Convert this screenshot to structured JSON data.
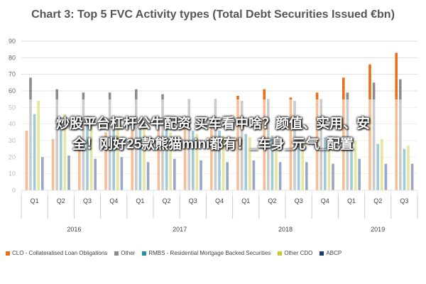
{
  "chart_data": {
    "type": "bar",
    "title": "Chart 3: Top 5 FVC Activity types (Total Debt Securities Issued €bn)",
    "ylim": [
      0,
      90
    ],
    "yticks": [
      0,
      10,
      20,
      30,
      40,
      50,
      60,
      70,
      80,
      90
    ],
    "grid": true,
    "legend_position": "bottom",
    "categories": [
      "Q1",
      "Q2",
      "Q3",
      "Q4",
      "Q1",
      "Q2",
      "Q3",
      "Q4",
      "Q1",
      "Q2",
      "Q3",
      "Q4",
      "Q1",
      "Q2",
      "Q3"
    ],
    "years": [
      {
        "label": "2016",
        "from": 0,
        "to": 3
      },
      {
        "label": "2017",
        "from": 4,
        "to": 7
      },
      {
        "label": "2018",
        "from": 8,
        "to": 11
      },
      {
        "label": "2019",
        "from": 12,
        "to": 14
      }
    ],
    "series": [
      {
        "name": "CLO - Collateralised Loan Obligations",
        "color": "#E8701A",
        "values": [
          36,
          31,
          33,
          35,
          38,
          37,
          40,
          41,
          57,
          61,
          56,
          59,
          68,
          76,
          83
        ]
      },
      {
        "name": "Other",
        "color": "#8C8C8C",
        "values": [
          68,
          61,
          59,
          59,
          61,
          58,
          55,
          55,
          54,
          55,
          54,
          55,
          59,
          65,
          67
        ]
      },
      {
        "name": "RMBS - Residential Mortgage Backed Securities",
        "color": "#2E8BA0",
        "values": [
          46,
          42,
          40,
          40,
          38,
          38,
          36,
          36,
          34,
          33,
          32,
          32,
          30,
          28,
          25
        ]
      },
      {
        "name": "Other CDO",
        "color": "#C8C830",
        "values": [
          54,
          46,
          42,
          40,
          38,
          35,
          34,
          33,
          32,
          33,
          31,
          32,
          30,
          31,
          27
        ]
      },
      {
        "name": "ABCP",
        "color": "#1F3A78",
        "values": [
          20,
          21,
          19,
          20,
          17,
          19,
          18,
          17,
          18,
          17,
          17,
          16,
          19,
          16,
          16
        ]
      }
    ]
  },
  "overlay": {
    "line1": "炒股平台杠杆公牛配资 买车看中啥？颜值、实用、安",
    "line2": "全！刚好25款熊猫mini都有！_车身_元气_配置"
  }
}
